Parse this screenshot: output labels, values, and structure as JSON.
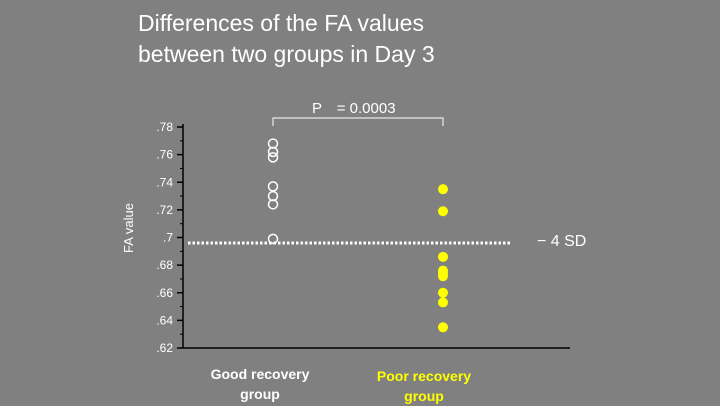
{
  "slide": {
    "title_line1": "Differences of the FA values",
    "title_line2": "between two groups in Day 3"
  },
  "chart_data": {
    "type": "scatter",
    "title": "Differences of the FA values between two groups in Day 3",
    "ylabel": "FA value",
    "ylim": [
      0.62,
      0.78
    ],
    "yticks": [
      0.62,
      0.64,
      0.66,
      0.68,
      0.7,
      0.72,
      0.74,
      0.76,
      0.78
    ],
    "ytick_labels": [
      ".62",
      ".64",
      ".66",
      ".68",
      ".7",
      ".72",
      ".74",
      ".76",
      ".78"
    ],
    "categories": [
      {
        "line1": "Good recovery",
        "line2": "group"
      },
      {
        "line1": "Poor recovery",
        "line2": "group"
      }
    ],
    "series": [
      {
        "category": 0,
        "marker": "open-circle",
        "color": "#ffffff",
        "values": [
          0.768,
          0.762,
          0.758,
          0.737,
          0.73,
          0.724,
          0.699
        ]
      },
      {
        "category": 1,
        "marker": "filled-circle",
        "color": "#ffff00",
        "values": [
          0.735,
          0.719,
          0.686,
          0.676,
          0.674,
          0.672,
          0.66,
          0.653,
          0.635
        ]
      }
    ],
    "reference_line": {
      "value": 0.696,
      "label": "− 4 SD",
      "style": "dotted"
    },
    "annotation": {
      "text": "P　= 0.0003",
      "between": [
        0,
        1
      ]
    },
    "colors": {
      "good": "#ffffff",
      "poor": "#ffff00",
      "background": "#808080"
    }
  }
}
